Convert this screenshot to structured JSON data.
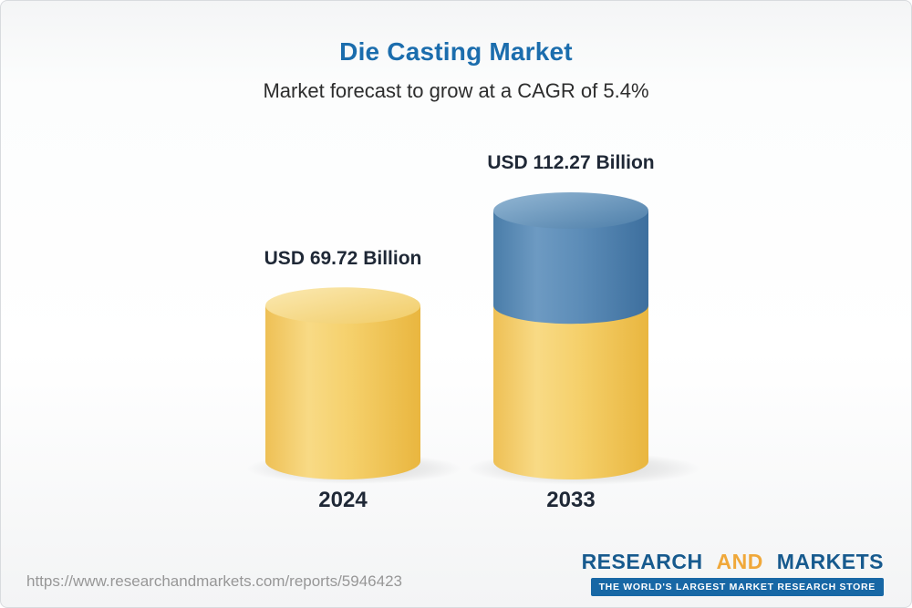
{
  "page": {
    "source_url": "https://www.researchandmarkets.com/reports/5946423"
  },
  "logo": {
    "word1": "RESEARCH",
    "word2": "AND",
    "word3": "MARKETS",
    "tagline": "THE WORLD'S LARGEST MARKET RESEARCH STORE"
  },
  "chart_data": {
    "type": "bar",
    "style": "3d-cylinder-stacked",
    "title": "Die Casting Market",
    "subtitle": "Market forecast to grow at a CAGR of 5.4%",
    "cagr_percent": 5.4,
    "unit": "USD Billion",
    "categories": [
      "2024",
      "2033"
    ],
    "values": [
      69.72,
      112.27
    ],
    "value_labels": [
      "USD 69.72 Billion",
      "USD 112.27 Billion"
    ],
    "colors": {
      "bar_base_yellow": "#F2CA5C",
      "bar_growth_blue": "#4E80AC",
      "title_blue": "#1B6DAD"
    },
    "legend": "none",
    "axes": "none",
    "xlabel": "",
    "ylabel": ""
  }
}
